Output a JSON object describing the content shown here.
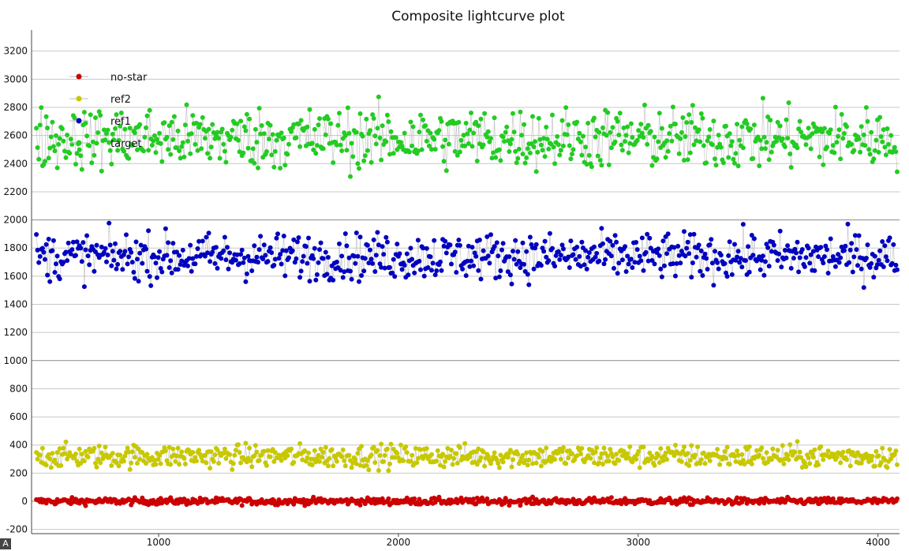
{
  "chart_data": {
    "type": "scatter",
    "title": "Composite lightcurve plot",
    "xlabel": "",
    "ylabel": "",
    "xlim": [
      470,
      4090
    ],
    "ylim": [
      -230,
      3350
    ],
    "xticks": [
      1000,
      2000,
      3000,
      4000
    ],
    "yticks": [
      -200,
      0,
      200,
      400,
      600,
      800,
      1000,
      1200,
      1400,
      1600,
      1800,
      2000,
      2200,
      2400,
      2600,
      2800,
      3000,
      3200
    ],
    "grid": true,
    "legend_position": "top-left",
    "connect_points": true,
    "series": [
      {
        "name": "no-star",
        "color": "#cc0000",
        "x_range": [
          490,
          4080
        ],
        "n": 700,
        "mean": 0,
        "spread": 22,
        "extremes": [
          -45,
          95
        ]
      },
      {
        "name": "ref2",
        "color": "#c8c800",
        "x_range": [
          490,
          4080
        ],
        "n": 700,
        "mean": 320,
        "spread": 75,
        "extremes": [
          100,
          570
        ]
      },
      {
        "name": "ref1",
        "color": "#0000c0",
        "x_range": [
          490,
          4080
        ],
        "n": 700,
        "mean": 1740,
        "spread": 150,
        "extremes": [
          1140,
          2140
        ]
      },
      {
        "name": "target",
        "color": "#22cc22",
        "x_range": [
          490,
          4080
        ],
        "n": 700,
        "mean": 2580,
        "spread": 200,
        "extremes": [
          1950,
          3220
        ]
      }
    ]
  },
  "overlay_label": "A"
}
